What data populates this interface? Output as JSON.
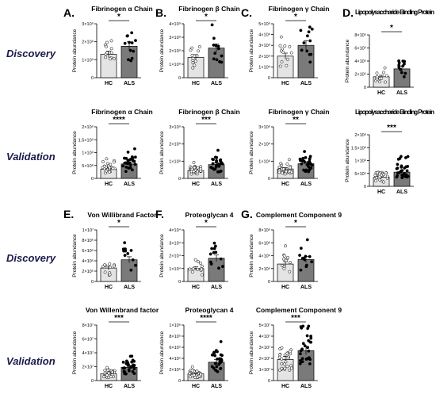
{
  "row_labels": [
    "Discovery",
    "Validation",
    "Discovery",
    "Validation"
  ],
  "panel_letters": [
    "A.",
    "B.",
    "C.",
    "D.",
    "E.",
    "F.",
    "G."
  ],
  "chart_data": [
    {
      "type": "bar",
      "title": "Fibrinogen α Chain",
      "ylabel": "Protein abundance",
      "categories": [
        "HC",
        "ALS"
      ],
      "values": [
        1.3,
        1.75
      ],
      "ylim": [
        0,
        3
      ],
      "yticks": [
        "0",
        "1×10⁹",
        "2×10⁹",
        "3×10⁹"
      ],
      "sig": "*"
    },
    {
      "type": "bar",
      "title": "Fibrinogen β Chain",
      "ylabel": "Protein abundance",
      "categories": [
        "HC",
        "ALS"
      ],
      "values": [
        1.5,
        2.2
      ],
      "ylim": [
        0,
        4
      ],
      "yticks": [
        "0",
        "1×10⁹",
        "2×10⁹",
        "3×10⁹",
        "4×10⁹"
      ],
      "sig": "*"
    },
    {
      "type": "bar",
      "title": "Fibrinogen γ Chain",
      "ylabel": "Protein abundance",
      "categories": [
        "HC",
        "ALS"
      ],
      "values": [
        2.0,
        3.0
      ],
      "ylim": [
        0,
        5
      ],
      "yticks": [
        "0",
        "1×10⁹",
        "2×10⁹",
        "3×10⁹",
        "4×10⁹",
        "5×10⁹"
      ],
      "sig": "*"
    },
    {
      "type": "bar",
      "title": "Lipopolysaccharide Binding Protein",
      "ylabel": "Protein abundance",
      "categories": [
        "HC",
        "ALS"
      ],
      "values": [
        1.6,
        2.8
      ],
      "ylim": [
        0,
        8
      ],
      "yticks": [
        "0",
        "2×10⁵",
        "4×10⁵",
        "6×10⁵",
        "8×10⁵"
      ],
      "sig": "*"
    },
    {
      "type": "bar",
      "title": "Fibrinogen α Chain",
      "ylabel": "Protein abundance",
      "categories": [
        "HC",
        "ALS"
      ],
      "values": [
        0.45,
        0.7
      ],
      "ylim": [
        0,
        2.5
      ],
      "yticks": [
        "0",
        "5×10⁸",
        "1×10⁹",
        "1.5×10⁹",
        "2×10⁹"
      ],
      "sig": "****"
    },
    {
      "type": "bar",
      "title": "Fibrinogen β Chain",
      "ylabel": "Protein abundance",
      "categories": [
        "HC",
        "ALS"
      ],
      "values": [
        0.45,
        0.8
      ],
      "ylim": [
        0,
        3
      ],
      "yticks": [
        "0",
        "1×10⁹",
        "2×10⁹",
        "3×10⁹"
      ],
      "sig": "***"
    },
    {
      "type": "bar",
      "title": "Fibrinogen γ Chain",
      "ylabel": "Protein abundance",
      "categories": [
        "HC",
        "ALS"
      ],
      "values": [
        0.55,
        0.85
      ],
      "ylim": [
        0,
        3
      ],
      "yticks": [
        "0",
        "1×10⁹",
        "2×10⁹",
        "3×10⁹"
      ],
      "sig": "**"
    },
    {
      "type": "bar",
      "title": "Lipopolysaccharide Binding Protein",
      "ylabel": "Protein abundance",
      "categories": [
        "HC",
        "ALS"
      ],
      "values": [
        3.5,
        5.5
      ],
      "ylim": [
        0,
        20
      ],
      "yticks": [
        "0",
        "5×10⁵",
        "1×10⁶",
        "1.5×10⁶",
        "2×10⁶"
      ],
      "sig": "***"
    },
    {
      "type": "bar",
      "title": "Von Willibrand Factor",
      "ylabel": "Protein abundance",
      "categories": [
        "HC",
        "ALS"
      ],
      "values": [
        2.6,
        4.2
      ],
      "ylim": [
        0,
        10
      ],
      "yticks": [
        "0",
        "2×10⁶",
        "4×10⁶",
        "6×10⁶",
        "8×10⁶",
        "1×10⁷"
      ],
      "sig": "*"
    },
    {
      "type": "bar",
      "title": "Proteoglycan 4",
      "ylabel": "Protein abundance",
      "categories": [
        "HC",
        "ALS"
      ],
      "values": [
        1.0,
        1.8
      ],
      "ylim": [
        0,
        4
      ],
      "yticks": [
        "0",
        "1×10⁴",
        "2×10⁴",
        "3×10⁴",
        "4×10⁴"
      ],
      "sig": "*"
    },
    {
      "type": "bar",
      "title": "Complement Component 9",
      "ylabel": "Protein abundance",
      "categories": [
        "HC",
        "ALS"
      ],
      "values": [
        2.7,
        3.4
      ],
      "ylim": [
        0,
        8
      ],
      "yticks": [
        "0",
        "2×10⁶",
        "4×10⁶",
        "6×10⁶",
        "8×10⁶"
      ],
      "sig": "*"
    },
    {
      "type": "bar",
      "title": "Von Willenbrand factor",
      "ylabel": "Protein abundance",
      "categories": [
        "HC",
        "ALS"
      ],
      "values": [
        1.0,
        1.9
      ],
      "ylim": [
        0,
        8
      ],
      "yticks": [
        "0",
        "2×10⁷",
        "4×10⁷",
        "6×10⁷",
        "8×10⁷"
      ],
      "sig": "***"
    },
    {
      "type": "bar",
      "title": "Proteoglycan 4",
      "ylabel": "Protein abundance",
      "categories": [
        "HC",
        "ALS"
      ],
      "values": [
        1.2,
        3.3
      ],
      "ylim": [
        0,
        10
      ],
      "yticks": [
        "0",
        "2×10⁵",
        "4×10⁵",
        "6×10⁵",
        "8×10⁵",
        "1×10⁶"
      ],
      "sig": "****"
    },
    {
      "type": "bar",
      "title": "Complement Component 9",
      "ylabel": "Protein abundance",
      "categories": [
        "HC",
        "ALS"
      ],
      "values": [
        1.9,
        2.7
      ],
      "ylim": [
        0,
        5
      ],
      "yticks": [
        "0",
        "1×10⁷",
        "2×10⁷",
        "3×10⁷",
        "4×10⁷",
        "5×10⁷"
      ],
      "sig": "***"
    }
  ]
}
